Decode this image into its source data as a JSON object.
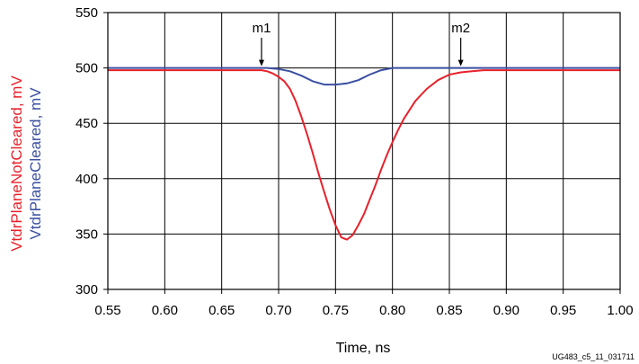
{
  "chart_data": {
    "type": "line",
    "xlabel": "Time, ns",
    "xlim": [
      0.55,
      1.0
    ],
    "ylim": [
      300,
      550
    ],
    "x_ticks": [
      "0.55",
      "0.60",
      "0.65",
      "0.70",
      "0.75",
      "0.80",
      "0.85",
      "0.90",
      "0.95",
      "1.00"
    ],
    "y_ticks": [
      "300",
      "350",
      "400",
      "450",
      "500",
      "550"
    ],
    "grid": true,
    "series": [
      {
        "name": "VtdrPlaneNotCleared, mV",
        "color": "#e8202a",
        "x": [
          0.55,
          0.6,
          0.65,
          0.68,
          0.685,
          0.69,
          0.695,
          0.7,
          0.705,
          0.71,
          0.715,
          0.72,
          0.725,
          0.73,
          0.735,
          0.74,
          0.745,
          0.75,
          0.755,
          0.76,
          0.765,
          0.77,
          0.775,
          0.78,
          0.785,
          0.79,
          0.795,
          0.8,
          0.805,
          0.81,
          0.82,
          0.83,
          0.84,
          0.85,
          0.86,
          0.87,
          0.88,
          0.9,
          0.95,
          1.0
        ],
        "y": [
          498,
          498,
          498,
          498,
          498,
          497,
          495,
          492,
          488,
          481,
          470,
          456,
          440,
          423,
          405,
          388,
          372,
          358,
          347,
          345,
          349,
          358,
          368,
          381,
          394,
          408,
          421,
          433,
          444,
          454,
          470,
          481,
          489,
          494,
          496,
          497,
          498,
          498,
          498,
          498
        ]
      },
      {
        "name": "VtdrPlaneCleared, mV",
        "color": "#3a4fa0",
        "x": [
          0.55,
          0.65,
          0.68,
          0.69,
          0.7,
          0.71,
          0.72,
          0.73,
          0.74,
          0.75,
          0.76,
          0.77,
          0.78,
          0.79,
          0.8,
          0.85,
          0.9,
          1.0
        ],
        "y": [
          500,
          500,
          500,
          500,
          499,
          497,
          493,
          488,
          485,
          485,
          486,
          489,
          494,
          498,
          500,
          500,
          500,
          500
        ]
      }
    ],
    "markers": [
      {
        "label": "m1",
        "x": 0.685
      },
      {
        "label": "m2",
        "x": 0.86
      }
    ],
    "figure_id": "UG483_c5_11_031711"
  }
}
